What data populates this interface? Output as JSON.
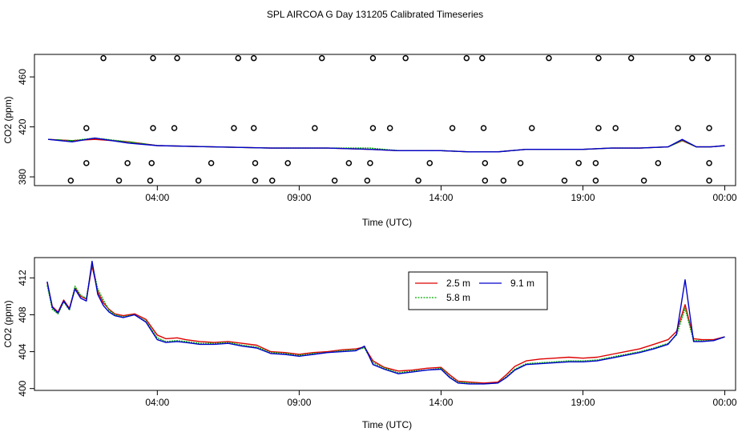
{
  "title": "SPL AIRCOA G  Day 131205  Calibrated Timeseries",
  "chart_data": [
    {
      "type": "scatter",
      "name": "top",
      "xlabel": "Time (UTC)",
      "ylabel": "CO2 (ppm)",
      "xlim": [
        -0.33,
        24.38
      ],
      "ylim": [
        373,
        478
      ],
      "x_ticks": [
        {
          "v": 4,
          "label": "04:00"
        },
        {
          "v": 9,
          "label": "09:00"
        },
        {
          "v": 14,
          "label": "14:00"
        },
        {
          "v": 19,
          "label": "19:00"
        },
        {
          "v": 24,
          "label": "00:00"
        }
      ],
      "y_ticks": [
        {
          "v": 380,
          "label": "380"
        },
        {
          "v": 420,
          "label": "420"
        },
        {
          "v": 460,
          "label": "460"
        }
      ],
      "cal_points": [
        {
          "x": 2.1,
          "y": 475
        },
        {
          "x": 3.85,
          "y": 475
        },
        {
          "x": 4.7,
          "y": 475
        },
        {
          "x": 6.85,
          "y": 475
        },
        {
          "x": 7.4,
          "y": 475
        },
        {
          "x": 9.8,
          "y": 475
        },
        {
          "x": 11.6,
          "y": 475
        },
        {
          "x": 12.75,
          "y": 475
        },
        {
          "x": 14.9,
          "y": 475
        },
        {
          "x": 15.45,
          "y": 475
        },
        {
          "x": 17.8,
          "y": 475
        },
        {
          "x": 19.55,
          "y": 475
        },
        {
          "x": 20.7,
          "y": 475
        },
        {
          "x": 22.85,
          "y": 475
        },
        {
          "x": 23.4,
          "y": 475
        },
        {
          "x": 1.5,
          "y": 419
        },
        {
          "x": 3.85,
          "y": 419
        },
        {
          "x": 4.6,
          "y": 419
        },
        {
          "x": 6.7,
          "y": 419
        },
        {
          "x": 7.4,
          "y": 419
        },
        {
          "x": 9.55,
          "y": 419
        },
        {
          "x": 11.6,
          "y": 419
        },
        {
          "x": 12.2,
          "y": 419
        },
        {
          "x": 14.4,
          "y": 419
        },
        {
          "x": 15.5,
          "y": 419
        },
        {
          "x": 17.2,
          "y": 419
        },
        {
          "x": 19.55,
          "y": 419
        },
        {
          "x": 20.15,
          "y": 419
        },
        {
          "x": 22.35,
          "y": 419
        },
        {
          "x": 23.45,
          "y": 419
        },
        {
          "x": 1.5,
          "y": 391
        },
        {
          "x": 2.95,
          "y": 391
        },
        {
          "x": 3.8,
          "y": 391
        },
        {
          "x": 5.9,
          "y": 391
        },
        {
          "x": 7.45,
          "y": 391
        },
        {
          "x": 8.6,
          "y": 391
        },
        {
          "x": 10.75,
          "y": 391
        },
        {
          "x": 11.5,
          "y": 391
        },
        {
          "x": 13.6,
          "y": 391
        },
        {
          "x": 15.55,
          "y": 391
        },
        {
          "x": 16.8,
          "y": 391
        },
        {
          "x": 18.85,
          "y": 391
        },
        {
          "x": 19.45,
          "y": 391
        },
        {
          "x": 21.65,
          "y": 391
        },
        {
          "x": 23.45,
          "y": 391
        },
        {
          "x": 0.95,
          "y": 377
        },
        {
          "x": 2.65,
          "y": 377
        },
        {
          "x": 3.75,
          "y": 377
        },
        {
          "x": 5.45,
          "y": 377
        },
        {
          "x": 7.45,
          "y": 377
        },
        {
          "x": 8.05,
          "y": 377
        },
        {
          "x": 10.25,
          "y": 377
        },
        {
          "x": 11.4,
          "y": 377
        },
        {
          "x": 13.2,
          "y": 377
        },
        {
          "x": 15.55,
          "y": 377
        },
        {
          "x": 16.2,
          "y": 377
        },
        {
          "x": 18.35,
          "y": 377
        },
        {
          "x": 19.45,
          "y": 377
        },
        {
          "x": 21.15,
          "y": 377
        },
        {
          "x": 23.45,
          "y": 377
        }
      ],
      "series": [
        {
          "name": "2.5 m",
          "color": "#dd0000",
          "x": [
            0.15,
            1.0,
            1.8,
            3.0,
            4.0,
            6.0,
            8.0,
            10.0,
            11.5,
            12.5,
            14.0,
            15.0,
            16.0,
            17.0,
            18.0,
            19.0,
            20.0,
            21.0,
            22.0,
            22.5,
            23.0,
            23.5,
            24.0
          ],
          "y": [
            410,
            409,
            410,
            408,
            405,
            404,
            403,
            403,
            402,
            401,
            401,
            400,
            400,
            402,
            402,
            402,
            403,
            403,
            404,
            409,
            404,
            404,
            405
          ]
        },
        {
          "name": "5.8 m",
          "color": "#00aa00",
          "x": [
            0.15,
            1.0,
            1.8,
            3.0,
            4.0,
            6.0,
            8.0,
            10.0,
            11.5,
            12.5,
            14.0,
            15.0,
            16.0,
            17.0,
            18.0,
            19.0,
            20.0,
            21.0,
            22.0,
            22.5,
            23.0,
            23.5,
            24.0
          ],
          "y": [
            410,
            409,
            411,
            408,
            405,
            404,
            403,
            403,
            403,
            401,
            401,
            400,
            400,
            402,
            402,
            402,
            403,
            403,
            404,
            409,
            404,
            404,
            405
          ]
        },
        {
          "name": "9.1 m",
          "color": "#0000cc",
          "x": [
            0.15,
            1.0,
            1.8,
            3.0,
            4.0,
            6.0,
            8.0,
            10.0,
            11.5,
            12.5,
            14.0,
            15.0,
            16.0,
            17.0,
            18.0,
            19.0,
            20.0,
            21.0,
            22.0,
            22.5,
            23.0,
            23.5,
            24.0
          ],
          "y": [
            410,
            408,
            411,
            407,
            405,
            404,
            403,
            403,
            402,
            401,
            401,
            400,
            400,
            402,
            402,
            402,
            403,
            403,
            404,
            410,
            404,
            404,
            405
          ]
        }
      ]
    },
    {
      "type": "line",
      "name": "bottom",
      "xlabel": "Time (UTC)",
      "ylabel": "CO2 (ppm)",
      "xlim": [
        -0.33,
        24.38
      ],
      "ylim": [
        399.8,
        414.2
      ],
      "x_ticks": [
        {
          "v": 4,
          "label": "04:00"
        },
        {
          "v": 9,
          "label": "09:00"
        },
        {
          "v": 14,
          "label": "14:00"
        },
        {
          "v": 19,
          "label": "19:00"
        },
        {
          "v": 24,
          "label": "00:00"
        }
      ],
      "y_ticks": [
        {
          "v": 400,
          "label": "400"
        },
        {
          "v": 404,
          "label": "404"
        },
        {
          "v": 408,
          "label": "408"
        },
        {
          "v": 412,
          "label": "412"
        }
      ],
      "legend": [
        "2.5 m",
        "9.1 m",
        "5.8 m"
      ],
      "series": [
        {
          "name": "2.5 m",
          "color": "#dd0000",
          "x": [
            0.12,
            0.3,
            0.5,
            0.7,
            0.9,
            1.1,
            1.3,
            1.5,
            1.7,
            1.9,
            2.1,
            2.3,
            2.5,
            2.8,
            3.2,
            3.6,
            4.0,
            4.3,
            4.7,
            5.0,
            5.5,
            6.0,
            6.5,
            7.0,
            7.5,
            8.0,
            8.5,
            9.0,
            9.5,
            10.0,
            10.5,
            11.0,
            11.3,
            11.6,
            12.0,
            12.5,
            13.0,
            13.5,
            14.0,
            14.3,
            14.6,
            15.0,
            15.5,
            16.0,
            16.3,
            16.6,
            17.0,
            17.5,
            18.0,
            18.5,
            19.0,
            19.5,
            20.0,
            20.5,
            21.0,
            21.5,
            22.0,
            22.3,
            22.6,
            22.9,
            23.2,
            23.6,
            24.0
          ],
          "y": [
            411.5,
            408.9,
            408.3,
            409.6,
            408.7,
            410.9,
            410.0,
            409.7,
            413.3,
            410.5,
            409.3,
            408.6,
            408.1,
            407.9,
            408.1,
            407.5,
            405.8,
            405.4,
            405.5,
            405.3,
            405.1,
            405.0,
            405.1,
            404.9,
            404.7,
            404.0,
            403.9,
            403.7,
            403.9,
            404.0,
            404.2,
            404.3,
            404.5,
            403.0,
            402.3,
            401.9,
            402.0,
            402.2,
            402.3,
            401.5,
            400.8,
            400.7,
            400.6,
            400.7,
            401.5,
            402.4,
            403.0,
            403.2,
            403.3,
            403.4,
            403.3,
            403.4,
            403.7,
            404.0,
            404.3,
            404.8,
            405.3,
            406.2,
            409.1,
            405.4,
            405.3,
            405.3,
            405.6
          ]
        },
        {
          "name": "5.8 m",
          "color": "#00aa00",
          "x": [
            0.12,
            0.3,
            0.5,
            0.7,
            0.9,
            1.1,
            1.3,
            1.5,
            1.7,
            1.9,
            2.1,
            2.3,
            2.5,
            2.8,
            3.2,
            3.6,
            4.0,
            4.3,
            4.7,
            5.0,
            5.5,
            6.0,
            6.5,
            7.0,
            7.5,
            8.0,
            8.5,
            9.0,
            9.5,
            10.0,
            10.5,
            11.0,
            11.3,
            11.6,
            12.0,
            12.5,
            13.0,
            13.5,
            14.0,
            14.3,
            14.6,
            15.0,
            15.5,
            16.0,
            16.3,
            16.6,
            17.0,
            17.5,
            18.0,
            18.5,
            19.0,
            19.5,
            20.0,
            20.5,
            21.0,
            21.5,
            22.0,
            22.3,
            22.6,
            22.9,
            23.2,
            23.6,
            24.0
          ],
          "y": [
            411.2,
            408.6,
            408.1,
            409.4,
            408.5,
            411.1,
            410.1,
            409.8,
            413.5,
            410.8,
            409.6,
            408.5,
            408.0,
            407.8,
            408.0,
            407.3,
            405.5,
            405.1,
            405.2,
            405.1,
            404.9,
            404.9,
            405.0,
            404.7,
            404.5,
            403.9,
            403.8,
            403.6,
            403.8,
            403.9,
            404.1,
            404.2,
            404.4,
            402.8,
            402.2,
            401.7,
            401.9,
            402.0,
            402.2,
            401.3,
            400.7,
            400.6,
            400.5,
            400.6,
            401.3,
            402.1,
            402.7,
            402.8,
            402.9,
            403.0,
            403.0,
            403.1,
            403.4,
            403.7,
            404.0,
            404.4,
            404.9,
            405.8,
            408.7,
            405.2,
            405.2,
            405.2,
            405.6
          ]
        },
        {
          "name": "9.1 m",
          "color": "#0000cc",
          "x": [
            0.12,
            0.3,
            0.5,
            0.7,
            0.9,
            1.1,
            1.3,
            1.5,
            1.7,
            1.9,
            2.1,
            2.3,
            2.5,
            2.8,
            3.2,
            3.6,
            4.0,
            4.3,
            4.7,
            5.0,
            5.5,
            6.0,
            6.5,
            7.0,
            7.5,
            8.0,
            8.5,
            9.0,
            9.5,
            10.0,
            10.5,
            11.0,
            11.3,
            11.6,
            12.0,
            12.5,
            13.0,
            13.5,
            14.0,
            14.3,
            14.6,
            15.0,
            15.5,
            16.0,
            16.3,
            16.6,
            17.0,
            17.5,
            18.0,
            18.5,
            19.0,
            19.5,
            20.0,
            20.5,
            21.0,
            21.5,
            22.0,
            22.3,
            22.6,
            22.9,
            23.2,
            23.6,
            24.0
          ],
          "y": [
            411.6,
            408.8,
            408.2,
            409.5,
            408.6,
            410.8,
            409.8,
            409.5,
            413.8,
            410.2,
            409.0,
            408.3,
            407.9,
            407.7,
            408.0,
            407.2,
            405.3,
            405.0,
            405.1,
            405.0,
            404.8,
            404.8,
            404.9,
            404.6,
            404.4,
            403.8,
            403.7,
            403.5,
            403.7,
            403.9,
            404.0,
            404.1,
            404.6,
            402.6,
            402.1,
            401.6,
            401.8,
            402.0,
            402.1,
            401.2,
            400.6,
            400.5,
            400.5,
            400.6,
            401.2,
            402.0,
            402.6,
            402.7,
            402.8,
            402.9,
            402.9,
            403.0,
            403.3,
            403.6,
            403.9,
            404.3,
            404.8,
            405.9,
            411.8,
            405.1,
            405.1,
            405.2,
            405.6
          ]
        }
      ]
    }
  ]
}
